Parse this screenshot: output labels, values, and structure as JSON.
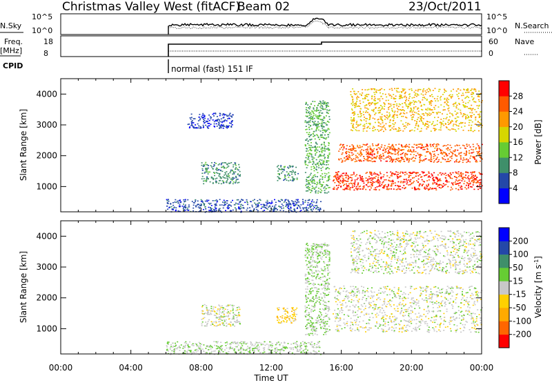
{
  "header": {
    "station_title": "Christmas Valley West (fitACF)",
    "beam": "Beam 02",
    "date": "23/Oct/2011"
  },
  "top_panels": {
    "nsky_label": "N.Sky",
    "nsky_ticks": [
      "10^5",
      "10^0"
    ],
    "nsearch_label": "N.Search",
    "nsearch_ticks": [
      "10^5",
      "10^0"
    ],
    "freq_label": "Freq.",
    "freq_unit": "[MHz]",
    "freq_ticks": [
      "18",
      "8"
    ],
    "nave_label": "Nave",
    "nave_ticks": [
      "60",
      "0"
    ],
    "cpid_label": "CPID",
    "cpid_text": "normal (fast) 151 IF"
  },
  "colors": {
    "power_scale": [
      "#0000ff",
      "#2448a8",
      "#3f8f6a",
      "#66cc33",
      "#d6d600",
      "#ff9900",
      "#ff5a00",
      "#ff0000"
    ],
    "velocity_scale": [
      "#ff0000",
      "#ff6600",
      "#ffaa00",
      "#ffd000",
      "#c8c8c8",
      "#66cc33",
      "#3f8f6a",
      "#2448a8",
      "#0000ff"
    ]
  },
  "chart_data": [
    {
      "type": "heatmap",
      "title": "Power",
      "xlabel": "",
      "ylabel": "Slant Range [km]",
      "x_range_hours": [
        0,
        24
      ],
      "ylim": [
        180,
        4500
      ],
      "y_ticks": [
        "1000",
        "2000",
        "3000",
        "4000"
      ],
      "colorbar": {
        "label": "Power [dB]",
        "range": [
          0,
          32
        ],
        "ticks": [
          "4",
          "8",
          "12",
          "16",
          "20",
          "24",
          "28"
        ]
      },
      "echo_regions": [
        {
          "t_start": 6.0,
          "t_end": 14.8,
          "range_min": 180,
          "range_max": 600,
          "value_db": 6
        },
        {
          "t_start": 8.0,
          "t_end": 10.2,
          "range_min": 1100,
          "range_max": 1800,
          "value_db": 10
        },
        {
          "t_start": 12.3,
          "t_end": 13.5,
          "range_min": 1200,
          "range_max": 1700,
          "value_db": 10
        },
        {
          "t_start": 7.2,
          "t_end": 9.8,
          "range_min": 2900,
          "range_max": 3400,
          "value_db": 5
        },
        {
          "t_start": 13.9,
          "t_end": 15.3,
          "range_min": 800,
          "range_max": 3800,
          "value_db": 12
        },
        {
          "t_start": 15.5,
          "t_end": 24.0,
          "range_min": 900,
          "range_max": 1500,
          "value_db": 28
        },
        {
          "t_start": 15.8,
          "t_end": 24.0,
          "range_min": 1800,
          "range_max": 2400,
          "value_db": 26
        },
        {
          "t_start": 16.5,
          "t_end": 24.0,
          "range_min": 2800,
          "range_max": 4200,
          "value_db": 20
        }
      ]
    },
    {
      "type": "heatmap",
      "title": "Velocity",
      "xlabel": "Time UT",
      "ylabel": "Slant Range [km]",
      "x_range_hours": [
        0,
        24
      ],
      "x_ticks": [
        "00:00",
        "04:00",
        "08:00",
        "12:00",
        "16:00",
        "20:00",
        "00:00"
      ],
      "ylim": [
        180,
        4500
      ],
      "y_ticks": [
        "1000",
        "2000",
        "3000",
        "4000"
      ],
      "colorbar": {
        "label": "Velocity [m s^-1]",
        "range": [
          -250,
          250
        ],
        "ticks": [
          "200",
          "100",
          "50",
          "15",
          "-15",
          "-50",
          "-100",
          "-200"
        ]
      },
      "echo_regions": [
        {
          "t_start": 6.0,
          "t_end": 14.8,
          "range_min": 180,
          "range_max": 600,
          "value_ms": 20
        },
        {
          "t_start": 8.0,
          "t_end": 10.2,
          "range_min": 1100,
          "range_max": 1800,
          "value_ms": 0
        },
        {
          "t_start": 12.3,
          "t_end": 13.5,
          "range_min": 1200,
          "range_max": 1700,
          "value_ms": -60
        },
        {
          "t_start": 13.9,
          "t_end": 15.3,
          "range_min": 800,
          "range_max": 3800,
          "value_ms": 30
        },
        {
          "t_start": 15.5,
          "t_end": 24.0,
          "range_min": 900,
          "range_max": 2400,
          "value_ms": 0
        },
        {
          "t_start": 16.5,
          "t_end": 24.0,
          "range_min": 2800,
          "range_max": 4200,
          "value_ms": 5
        }
      ]
    }
  ]
}
